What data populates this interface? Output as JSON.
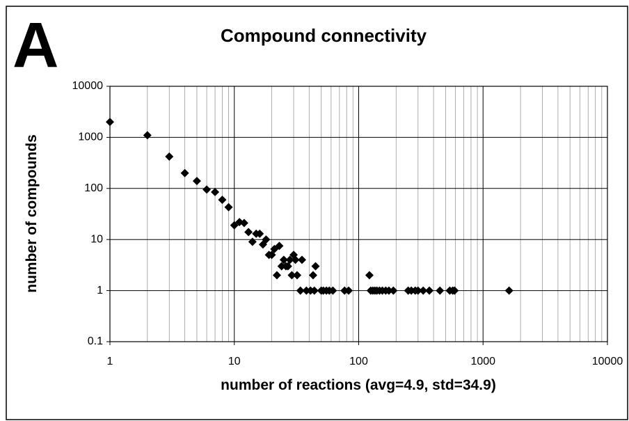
{
  "chart_data": {
    "type": "scatter",
    "panel_label": "A",
    "title": "Compound connectivity",
    "x_label": "number of reactions (avg=4.9, std=34.9)",
    "y_label": "number of compounds",
    "log_x": true,
    "log_y": true,
    "grid": true,
    "minor_grid_x": true,
    "color": "#000000",
    "marker": "diamond",
    "xlim": [
      1,
      10000
    ],
    "ylim": [
      0.1,
      10000
    ],
    "xticks": [
      1,
      10,
      100,
      1000,
      10000
    ],
    "yticks": [
      0.1,
      1,
      10,
      100,
      1000,
      10000
    ],
    "x": [
      1,
      2,
      3,
      4,
      5,
      6,
      7,
      8,
      9,
      10,
      11,
      12,
      13,
      14,
      15,
      16,
      17,
      18,
      19,
      20,
      21,
      22,
      23,
      24,
      25,
      26,
      27,
      28,
      29,
      30,
      31,
      32,
      34,
      35,
      38,
      41,
      43,
      44,
      45,
      50,
      52,
      55,
      58,
      62,
      77,
      83,
      122,
      125,
      130,
      135,
      140,
      147,
      155,
      165,
      175,
      190,
      250,
      265,
      285,
      300,
      330,
      370,
      450,
      540,
      570,
      590,
      1620
    ],
    "values": [
      2000,
      1100,
      420,
      200,
      140,
      95,
      85,
      60,
      43,
      19,
      22,
      21,
      14,
      9,
      13,
      13,
      8,
      10,
      5,
      5,
      6.5,
      2,
      7.5,
      3,
      4,
      3,
      3,
      4,
      2,
      5,
      4,
      2,
      1,
      4,
      1,
      1,
      2,
      1,
      3,
      1,
      1,
      1,
      1,
      1,
      1,
      1,
      2,
      1,
      1,
      1,
      1,
      1,
      1,
      1,
      1,
      1,
      1,
      1,
      1,
      1,
      1,
      1,
      1,
      1,
      1,
      1,
      1
    ]
  }
}
